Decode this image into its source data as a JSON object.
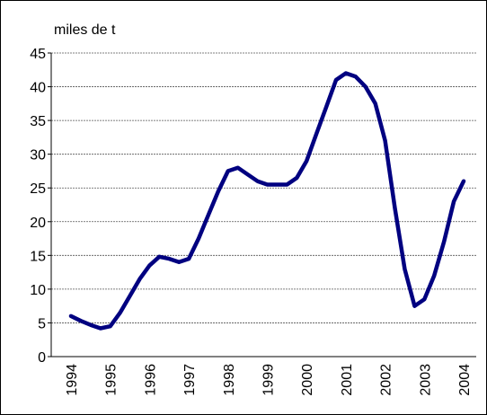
{
  "chart_data": {
    "type": "line",
    "y_label": "miles de t",
    "categories": [
      "1994",
      null,
      null,
      null,
      "1995",
      null,
      null,
      null,
      "1996",
      null,
      null,
      null,
      "1997",
      null,
      null,
      null,
      "1998",
      null,
      null,
      null,
      "1999",
      null,
      null,
      null,
      "2000",
      null,
      null,
      null,
      "2001",
      null,
      null,
      null,
      "2002",
      null,
      null,
      null,
      "2003",
      null,
      null,
      null,
      "2004"
    ],
    "series": [
      {
        "color": "#000080",
        "values": [
          6,
          5.3,
          4.7,
          4.2,
          4.5,
          6.5,
          9,
          11.5,
          13.5,
          14.8,
          14.5,
          14,
          14.5,
          17.5,
          21,
          24.5,
          27.5,
          28,
          27,
          26,
          25.5,
          25.5,
          25.5,
          26.5,
          29,
          33,
          37,
          41,
          42,
          41.5,
          40,
          37.5,
          32,
          22,
          13,
          7.5,
          8.5,
          12,
          17,
          23,
          26
        ]
      }
    ],
    "ylim": [
      0,
      45
    ],
    "yticks": [
      0,
      5,
      10,
      15,
      20,
      25,
      30,
      35,
      40,
      45
    ],
    "grid": true
  }
}
